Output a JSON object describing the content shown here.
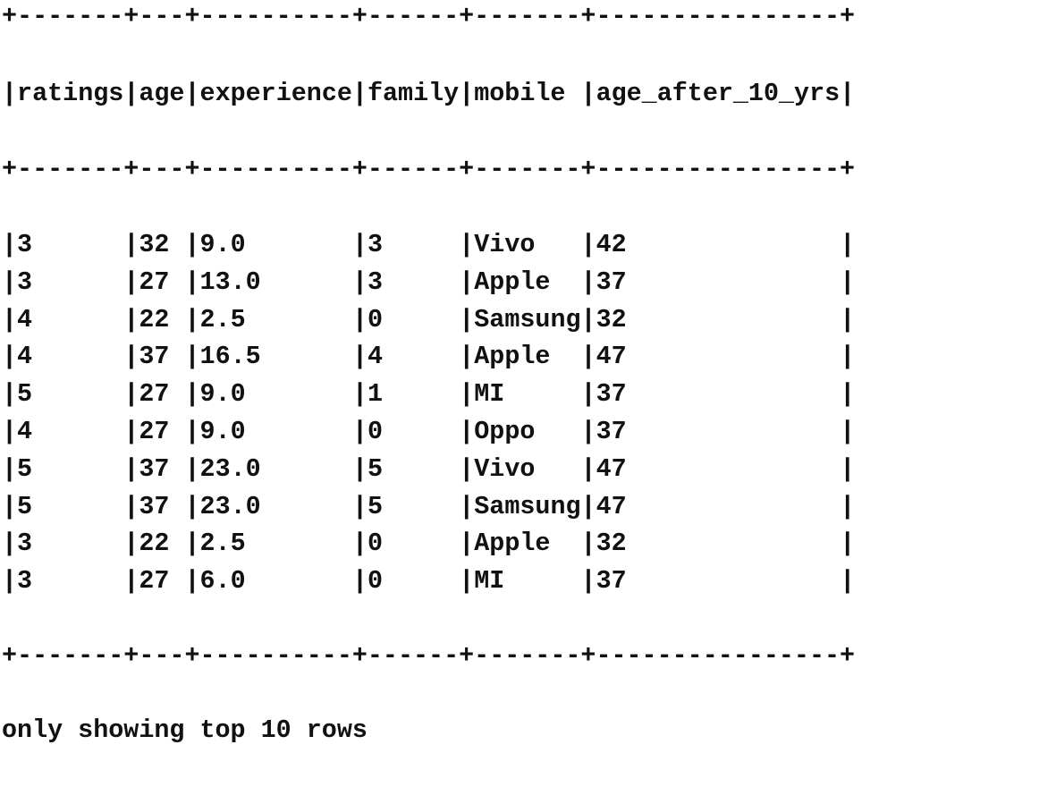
{
  "table": {
    "columns": [
      "ratings",
      "age",
      "experience",
      "family",
      "mobile",
      "age_after_10_yrs"
    ],
    "rows": [
      [
        "3",
        "32",
        "9.0",
        "3",
        "Vivo",
        "42"
      ],
      [
        "3",
        "27",
        "13.0",
        "3",
        "Apple",
        "37"
      ],
      [
        "4",
        "22",
        "2.5",
        "0",
        "Samsung",
        "32"
      ],
      [
        "4",
        "37",
        "16.5",
        "4",
        "Apple",
        "47"
      ],
      [
        "5",
        "27",
        "9.0",
        "1",
        "MI",
        "37"
      ],
      [
        "4",
        "27",
        "9.0",
        "0",
        "Oppo",
        "37"
      ],
      [
        "5",
        "37",
        "23.0",
        "5",
        "Vivo",
        "47"
      ],
      [
        "5",
        "37",
        "23.0",
        "5",
        "Samsung",
        "47"
      ],
      [
        "3",
        "22",
        "2.5",
        "0",
        "Apple",
        "32"
      ],
      [
        "3",
        "27",
        "6.0",
        "0",
        "MI",
        "37"
      ]
    ]
  },
  "footer": {
    "text": "only showing top 10 rows"
  }
}
